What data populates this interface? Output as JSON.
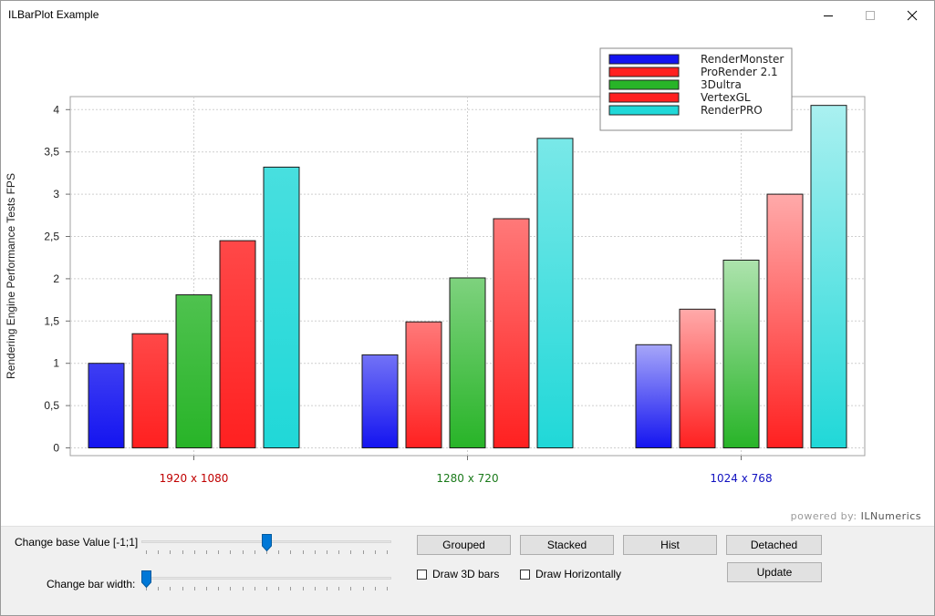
{
  "window": {
    "title": "ILBarPlot Example",
    "minimize_icon": "minimize-icon",
    "maximize_icon": "maximize-icon",
    "close_icon": "close-icon"
  },
  "chart_data": {
    "type": "bar",
    "ylabel": "Rendering Engine Performance Tests FPS",
    "xlabel": "",
    "ylim": [
      0,
      4.2
    ],
    "y_ticks": [
      "0",
      "0,5",
      "1",
      "1,5",
      "2",
      "2,5",
      "3",
      "3,5",
      "4"
    ],
    "grid": true,
    "legend_position": "top-right",
    "categories": [
      "1920 x 1080",
      "1280 x 720",
      "1024 x 768"
    ],
    "category_colors": [
      "#c00000",
      "#1a7a1a",
      "#1010c0"
    ],
    "series": [
      {
        "name": "RenderMonster",
        "color": "#1414f0",
        "values": [
          1.0,
          1.1,
          1.22
        ]
      },
      {
        "name": "ProRender 2.1",
        "color": "#ff2020",
        "values": [
          1.35,
          1.49,
          1.64
        ]
      },
      {
        "name": "3Dultra",
        "color": "#28b428",
        "values": [
          1.81,
          2.01,
          2.22
        ]
      },
      {
        "name": "VertexGL",
        "color": "#ff2020",
        "values": [
          2.45,
          2.71,
          3.0
        ]
      },
      {
        "name": "RenderPRO",
        "color": "#20d8d8",
        "values": [
          3.32,
          3.66,
          4.05
        ]
      }
    ]
  },
  "branding": {
    "powered_prefix": "powered by:",
    "powered_name": "ILNumerics"
  },
  "controls": {
    "base_value_label": "Change base Value [-1;1]",
    "base_value": 0.0,
    "bar_width_label": "Change bar width:",
    "bar_width_level": 0.0,
    "grouped_label": "Grouped",
    "stacked_label": "Stacked",
    "hist_label": "Hist",
    "detached_label": "Detached",
    "update_label": "Update",
    "draw3d_label": "Draw 3D bars",
    "draw3d_checked": false,
    "horizontal_label": "Draw Horizontally",
    "horizontal_checked": false
  }
}
